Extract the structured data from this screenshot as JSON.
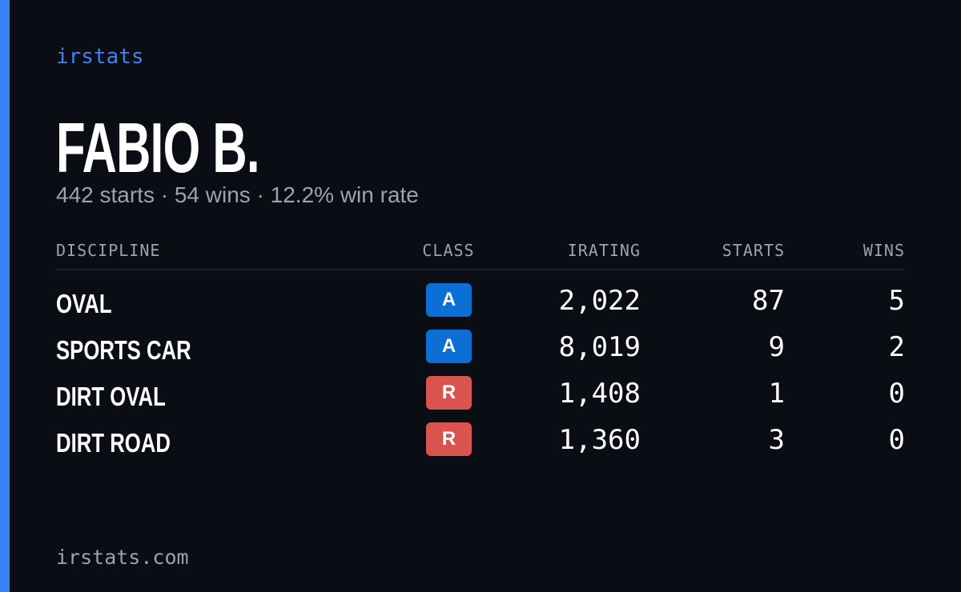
{
  "brand": "irstats",
  "driver": {
    "name": "FABIO B.",
    "summary": "442 starts · 54 wins · 12.2% win rate"
  },
  "table": {
    "headers": [
      "DISCIPLINE",
      "CLASS",
      "IRATING",
      "STARTS",
      "WINS"
    ],
    "rows": [
      {
        "discipline": "OVAL",
        "class": "A",
        "badge_color": "#0b6fd6",
        "irating": "2,022",
        "starts": "87",
        "wins": "5"
      },
      {
        "discipline": "SPORTS CAR",
        "class": "A",
        "badge_color": "#0b6fd6",
        "irating": "8,019",
        "starts": "9",
        "wins": "2"
      },
      {
        "discipline": "DIRT OVAL",
        "class": "R",
        "badge_color": "#d9534f",
        "irating": "1,408",
        "starts": "1",
        "wins": "0"
      },
      {
        "discipline": "DIRT ROAD",
        "class": "R",
        "badge_color": "#d9534f",
        "irating": "1,360",
        "starts": "3",
        "wins": "0"
      }
    ]
  },
  "footer": "irstats.com"
}
